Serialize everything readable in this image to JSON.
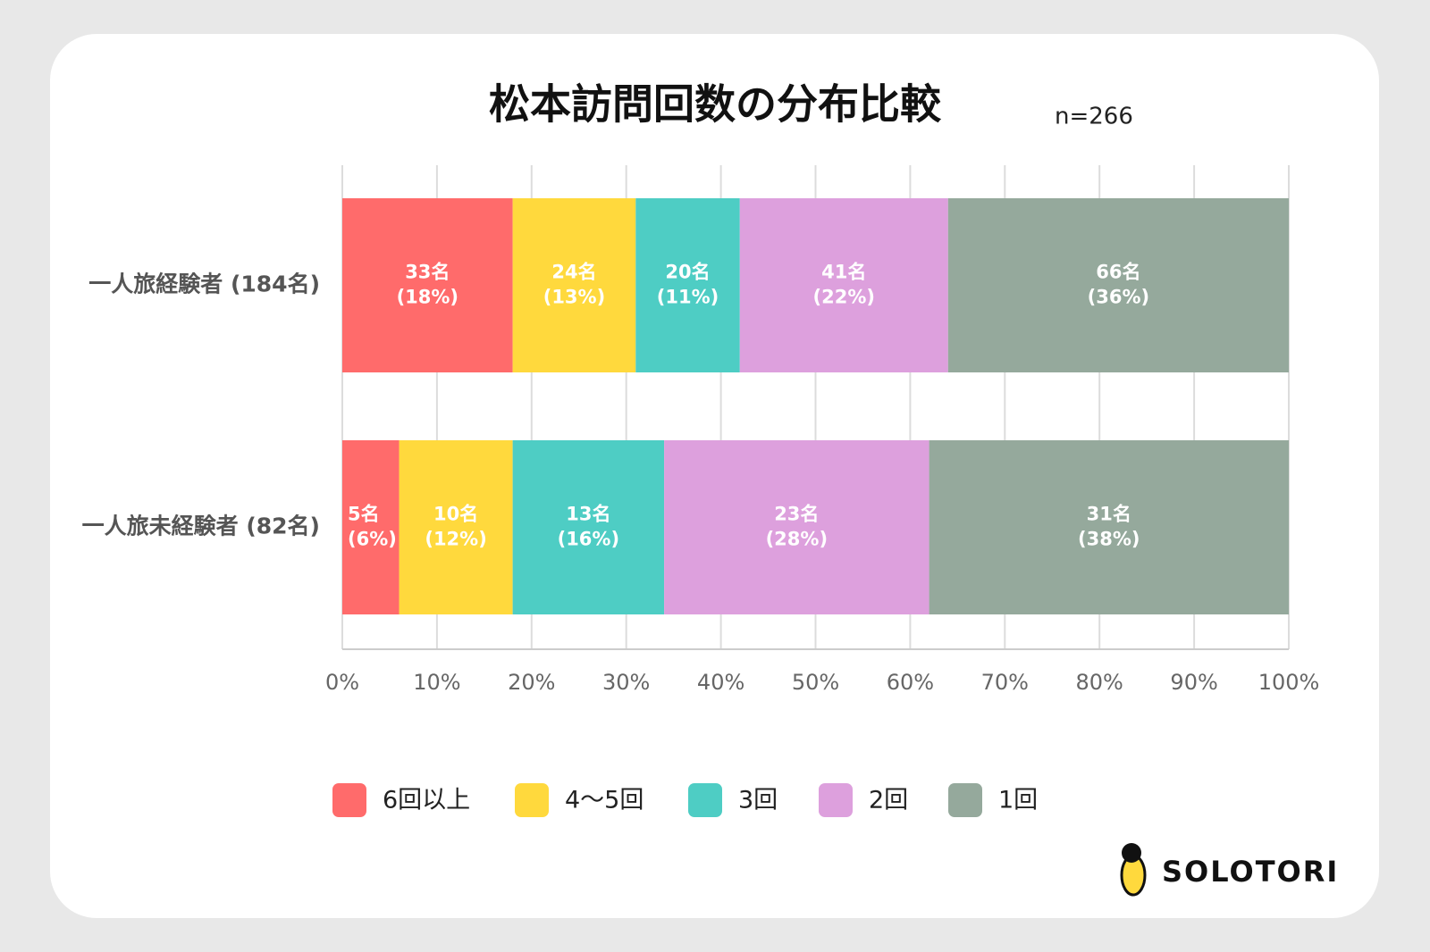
{
  "chart_data": {
    "type": "stacked-barh",
    "title": "松本訪問回数の分布比較",
    "subtitle": "n=266",
    "categories": [
      "一人旅経験者 (184名)",
      "一人旅未経験者 (82名)"
    ],
    "series": [
      {
        "name": "6回以上",
        "color": "#ff6b6b",
        "values": [
          18,
          6
        ],
        "value_labels": [
          "33名\n(18%)",
          "5名\n(6%)"
        ]
      },
      {
        "name": "4〜5回",
        "color": "#ffd93d",
        "values": [
          13,
          12
        ],
        "value_labels": [
          "24名\n(13%)",
          "10名\n(12%)"
        ]
      },
      {
        "name": "3回",
        "color": "#4ecdc4",
        "values": [
          11,
          16
        ],
        "value_labels": [
          "20名\n(11%)",
          "13名\n(16%)"
        ]
      },
      {
        "name": "2回",
        "color": "#dda0dd",
        "values": [
          22,
          28
        ],
        "value_labels": [
          "41名\n(22%)",
          "23名\n(28%)"
        ]
      },
      {
        "name": "1回",
        "color": "#95a99c",
        "values": [
          36,
          38
        ],
        "value_labels": [
          "66名\n(36%)",
          "31名\n(38%)"
        ]
      }
    ],
    "xlim": [
      0,
      100
    ],
    "xticks": [
      {
        "value": 0,
        "label": "0%"
      },
      {
        "value": 10,
        "label": "10%"
      },
      {
        "value": 20,
        "label": "20%"
      },
      {
        "value": 30,
        "label": "30%"
      },
      {
        "value": 40,
        "label": "40%"
      },
      {
        "value": 50,
        "label": "50%"
      },
      {
        "value": 60,
        "label": "60%"
      },
      {
        "value": 70,
        "label": "70%"
      },
      {
        "value": 80,
        "label": "80%"
      },
      {
        "value": 90,
        "label": "90%"
      },
      {
        "value": 100,
        "label": "100%"
      }
    ],
    "grid": true,
    "legend": "bottom",
    "brand": "SOLOTORI"
  }
}
